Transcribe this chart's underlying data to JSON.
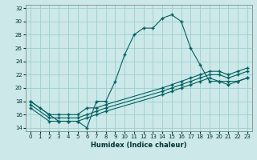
{
  "xlabel": "Humidex (Indice chaleur)",
  "bg_color": "#cce8e8",
  "line_color": "#006060",
  "grid_color": "#9ecece",
  "xlim": [
    -0.5,
    23.5
  ],
  "ylim": [
    13.5,
    32.5
  ],
  "xticks": [
    0,
    1,
    2,
    3,
    4,
    5,
    6,
    7,
    8,
    9,
    10,
    11,
    12,
    13,
    14,
    15,
    16,
    17,
    18,
    19,
    20,
    21,
    22,
    23
  ],
  "yticks": [
    14,
    16,
    18,
    20,
    22,
    24,
    26,
    28,
    30,
    32
  ],
  "line1_x": [
    0,
    1,
    2,
    3,
    4,
    5,
    6,
    7,
    8,
    9,
    10,
    11,
    12,
    13,
    14,
    15,
    16,
    17,
    18,
    19,
    20,
    21,
    22,
    23
  ],
  "line1_y": [
    18,
    17,
    16,
    15,
    15,
    15,
    14,
    18,
    18,
    21,
    25,
    28,
    29,
    29,
    30.5,
    31,
    30,
    26,
    23.5,
    21,
    21,
    20.5,
    21,
    21.5
  ],
  "line2_x": [
    0,
    2,
    3,
    4,
    5,
    6,
    7,
    8,
    14,
    15,
    16,
    17,
    18,
    19,
    20,
    21,
    22,
    23
  ],
  "line2_y": [
    18,
    16,
    16,
    16,
    16,
    17,
    17,
    17.5,
    20,
    20.5,
    21,
    21.5,
    22,
    22.5,
    22.5,
    22,
    22.5,
    23
  ],
  "line3_x": [
    0,
    2,
    3,
    4,
    5,
    6,
    7,
    8,
    14,
    15,
    16,
    17,
    18,
    19,
    20,
    21,
    22,
    23
  ],
  "line3_y": [
    17.5,
    15.5,
    15.5,
    15.5,
    15.5,
    16,
    16.5,
    17,
    19.5,
    20,
    20.5,
    21,
    21.5,
    22,
    22,
    21.5,
    22,
    22.5
  ],
  "line4_x": [
    0,
    2,
    3,
    4,
    5,
    6,
    7,
    8,
    14,
    15,
    16,
    17,
    18,
    19,
    20,
    21,
    22,
    23
  ],
  "line4_y": [
    17,
    15,
    15,
    15,
    15,
    15.5,
    16,
    16.5,
    19,
    19.5,
    20,
    20.5,
    21,
    21.5,
    21,
    21,
    21,
    21.5
  ]
}
